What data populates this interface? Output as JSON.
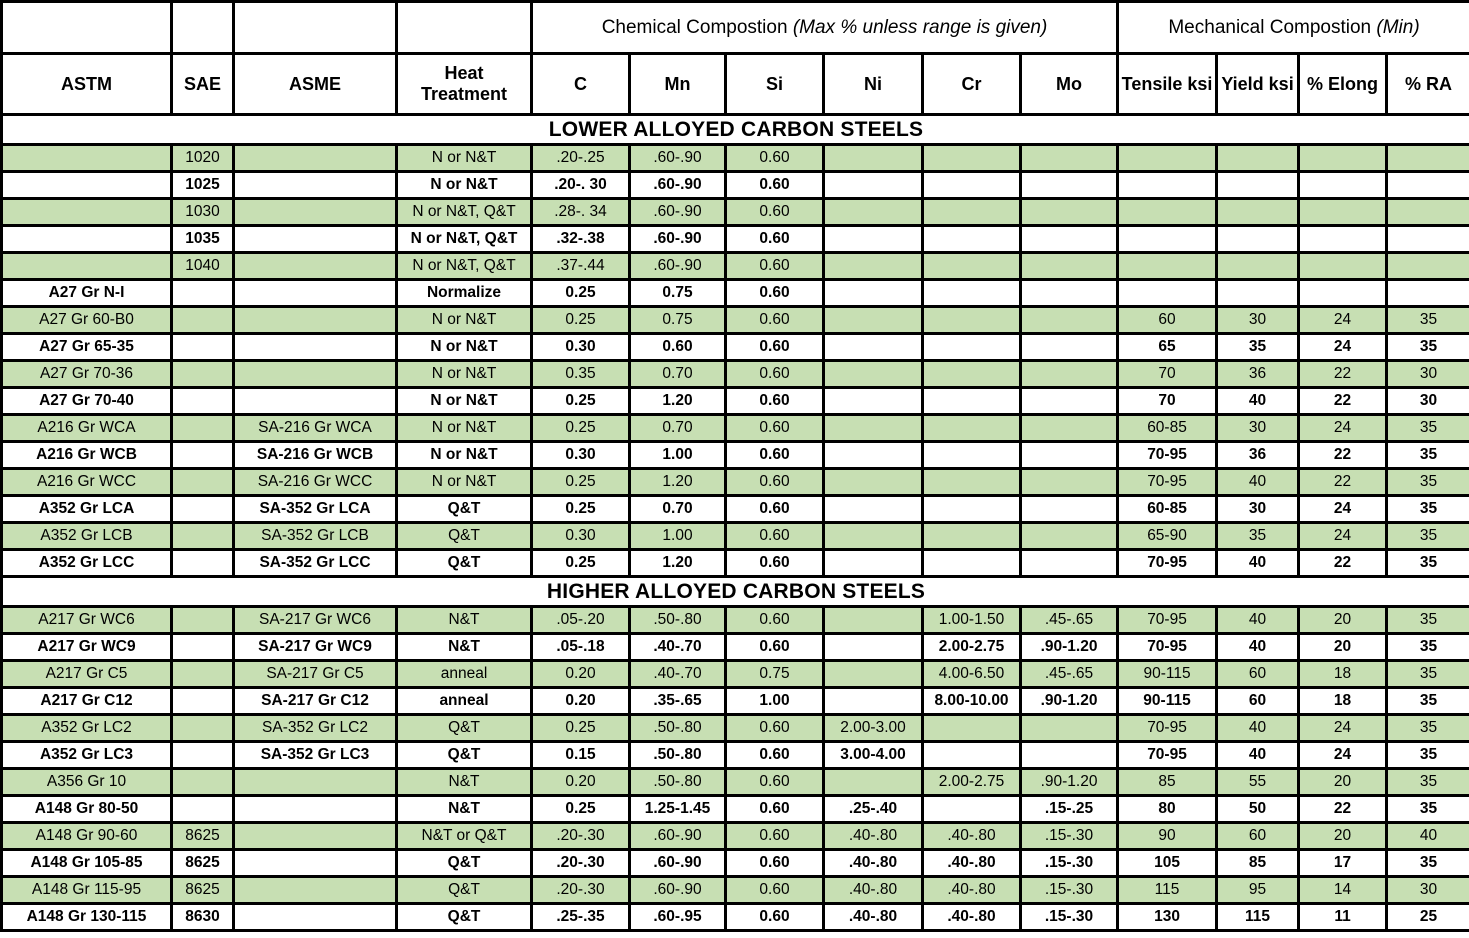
{
  "colors": {
    "row_green": "#c7dfb3",
    "row_white": "#ffffff",
    "border": "#000000",
    "text": "#000000"
  },
  "header": {
    "chem_group": "Chemical Compostion",
    "chem_note": "(Max % unless range is given)",
    "mech_group": "Mechanical Compostion",
    "mech_note": "(Min)",
    "columns": [
      "ASTM",
      "SAE",
      "ASME",
      "Heat Treatment",
      "C",
      "Mn",
      "Si",
      "Ni",
      "Cr",
      "Mo",
      "Tensile ksi",
      "Yield ksi",
      "% Elong",
      "% RA"
    ]
  },
  "sections": [
    {
      "title": "LOWER ALLOYED CARBON STEELS",
      "rows": [
        [
          "",
          "1020",
          "",
          "N or N&T",
          ".20-.25",
          ".60-.90",
          "0.60",
          "",
          "",
          "",
          "",
          "",
          "",
          ""
        ],
        [
          "",
          "1025",
          "",
          "N or N&T",
          ".20-. 30",
          ".60-.90",
          "0.60",
          "",
          "",
          "",
          "",
          "",
          "",
          ""
        ],
        [
          "",
          "1030",
          "",
          "N or N&T, Q&T",
          ".28-. 34",
          ".60-.90",
          "0.60",
          "",
          "",
          "",
          "",
          "",
          "",
          ""
        ],
        [
          "",
          "1035",
          "",
          "N or N&T, Q&T",
          ".32-.38",
          ".60-.90",
          "0.60",
          "",
          "",
          "",
          "",
          "",
          "",
          ""
        ],
        [
          "",
          "1040",
          "",
          "N or N&T, Q&T",
          ".37-.44",
          ".60-.90",
          "0.60",
          "",
          "",
          "",
          "",
          "",
          "",
          ""
        ],
        [
          "A27 Gr N-I",
          "",
          "",
          "Normalize",
          "0.25",
          "0.75",
          "0.60",
          "",
          "",
          "",
          "",
          "",
          "",
          ""
        ],
        [
          "A27 Gr 60-B0",
          "",
          "",
          "N or N&T",
          "0.25",
          "0.75",
          "0.60",
          "",
          "",
          "",
          "60",
          "30",
          "24",
          "35"
        ],
        [
          "A27 Gr 65-35",
          "",
          "",
          "N or N&T",
          "0.30",
          "0.60",
          "0.60",
          "",
          "",
          "",
          "65",
          "35",
          "24",
          "35"
        ],
        [
          "A27 Gr 70-36",
          "",
          "",
          "N or N&T",
          "0.35",
          "0.70",
          "0.60",
          "",
          "",
          "",
          "70",
          "36",
          "22",
          "30"
        ],
        [
          "A27 Gr 70-40",
          "",
          "",
          "N or N&T",
          "0.25",
          "1.20",
          "0.60",
          "",
          "",
          "",
          "70",
          "40",
          "22",
          "30"
        ],
        [
          "A216 Gr WCA",
          "",
          "SA-216 Gr WCA",
          "N or N&T",
          "0.25",
          "0.70",
          "0.60",
          "",
          "",
          "",
          "60-85",
          "30",
          "24",
          "35"
        ],
        [
          "A216 Gr WCB",
          "",
          "SA-216 Gr WCB",
          "N or N&T",
          "0.30",
          "1.00",
          "0.60",
          "",
          "",
          "",
          "70-95",
          "36",
          "22",
          "35"
        ],
        [
          "A216 Gr WCC",
          "",
          "SA-216 Gr WCC",
          "N or N&T",
          "0.25",
          "1.20",
          "0.60",
          "",
          "",
          "",
          "70-95",
          "40",
          "22",
          "35"
        ],
        [
          "A352 Gr LCA",
          "",
          "SA-352 Gr LCA",
          "Q&T",
          "0.25",
          "0.70",
          "0.60",
          "",
          "",
          "",
          "60-85",
          "30",
          "24",
          "35"
        ],
        [
          "A352 Gr LCB",
          "",
          "SA-352 Gr LCB",
          "Q&T",
          "0.30",
          "1.00",
          "0.60",
          "",
          "",
          "",
          "65-90",
          "35",
          "24",
          "35"
        ],
        [
          "A352 Gr LCC",
          "",
          "SA-352 Gr LCC",
          "Q&T",
          "0.25",
          "1.20",
          "0.60",
          "",
          "",
          "",
          "70-95",
          "40",
          "22",
          "35"
        ]
      ]
    },
    {
      "title": "HIGHER ALLOYED CARBON STEELS",
      "rows": [
        [
          "A217 Gr WC6",
          "",
          "SA-217 Gr WC6",
          "N&T",
          ".05-.20",
          ".50-.80",
          "0.60",
          "",
          "1.00-1.50",
          ".45-.65",
          "70-95",
          "40",
          "20",
          "35"
        ],
        [
          "A217 Gr WC9",
          "",
          "SA-217 Gr WC9",
          "N&T",
          ".05-.18",
          ".40-.70",
          "0.60",
          "",
          "2.00-2.75",
          ".90-1.20",
          "70-95",
          "40",
          "20",
          "35"
        ],
        [
          "A217 Gr C5",
          "",
          "SA-217 Gr C5",
          "anneal",
          "0.20",
          ".40-.70",
          "0.75",
          "",
          "4.00-6.50",
          ".45-.65",
          "90-115",
          "60",
          "18",
          "35"
        ],
        [
          "A217 Gr C12",
          "",
          "SA-217 Gr C12",
          "anneal",
          "0.20",
          ".35-.65",
          "1.00",
          "",
          "8.00-10.00",
          ".90-1.20",
          "90-115",
          "60",
          "18",
          "35"
        ],
        [
          "A352 Gr LC2",
          "",
          "SA-352 Gr LC2",
          "Q&T",
          "0.25",
          ".50-.80",
          "0.60",
          "2.00-3.00",
          "",
          "",
          "70-95",
          "40",
          "24",
          "35"
        ],
        [
          "A352 Gr LC3",
          "",
          "SA-352 Gr LC3",
          "Q&T",
          "0.15",
          ".50-.80",
          "0.60",
          "3.00-4.00",
          "",
          "",
          "70-95",
          "40",
          "24",
          "35"
        ],
        [
          "A356 Gr 10",
          "",
          "",
          "N&T",
          "0.20",
          ".50-.80",
          "0.60",
          "",
          "2.00-2.75",
          ".90-1.20",
          "85",
          "55",
          "20",
          "35"
        ],
        [
          "A148 Gr 80-50",
          "",
          "",
          "N&T",
          "0.25",
          "1.25-1.45",
          "0.60",
          ".25-.40",
          "",
          ".15-.25",
          "80",
          "50",
          "22",
          "35"
        ],
        [
          "A148 Gr 90-60",
          "8625",
          "",
          "N&T or Q&T",
          ".20-.30",
          ".60-.90",
          "0.60",
          ".40-.80",
          ".40-.80",
          ".15-.30",
          "90",
          "60",
          "20",
          "40"
        ],
        [
          "A148 Gr 105-85",
          "8625",
          "",
          "Q&T",
          ".20-.30",
          ".60-.90",
          "0.60",
          ".40-.80",
          ".40-.80",
          ".15-.30",
          "105",
          "85",
          "17",
          "35"
        ],
        [
          "A148 Gr 115-95",
          "8625",
          "",
          "Q&T",
          ".20-.30",
          ".60-.90",
          "0.60",
          ".40-.80",
          ".40-.80",
          ".15-.30",
          "115",
          "95",
          "14",
          "30"
        ],
        [
          "A148 Gr 130-115",
          "8630",
          "",
          "Q&T",
          ".25-.35",
          ".60-.95",
          "0.60",
          ".40-.80",
          ".40-.80",
          ".15-.30",
          "130",
          "115",
          "11",
          "25"
        ]
      ]
    }
  ]
}
